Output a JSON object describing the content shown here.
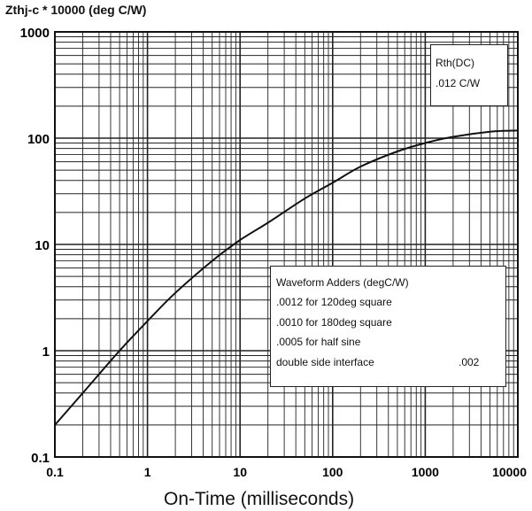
{
  "chart_data": {
    "type": "line",
    "ylabel": "Zthj-c * 10000 (deg C/W)",
    "xlabel": "On-Time (milliseconds)",
    "x_scale": "log",
    "y_scale": "log",
    "xlim": [
      0.1,
      10000
    ],
    "ylim": [
      0.1,
      1000
    ],
    "x_ticks": [
      "0.1",
      "1",
      "10",
      "100",
      "1000",
      "10000"
    ],
    "y_ticks": [
      "1000",
      "100",
      "10",
      "1",
      "0.1"
    ],
    "grid": true,
    "series": [
      {
        "x": [
          0.1,
          0.2,
          0.5,
          1,
          2,
          5,
          10,
          20,
          50,
          100,
          200,
          500,
          1000,
          2000,
          5000,
          10000
        ],
        "y": [
          0.2,
          0.4,
          1.0,
          1.9,
          3.5,
          7.0,
          11,
          16,
          27,
          38,
          54,
          75,
          90,
          103,
          115,
          118
        ]
      }
    ],
    "annotations": {
      "rth_title": "Rth(DC)",
      "rth_value": ".012 C/W",
      "adders_title": "Waveform Adders (degC/W)",
      "adders_lines": [
        ".0012 for 120deg square",
        ".0010 for 180deg square",
        ".0005 for half sine",
        "double side interface"
      ],
      "adders_double_side_value": ".002"
    },
    "colors": {
      "line": "#111111",
      "grid": "#222222",
      "background": "#ffffff"
    }
  }
}
